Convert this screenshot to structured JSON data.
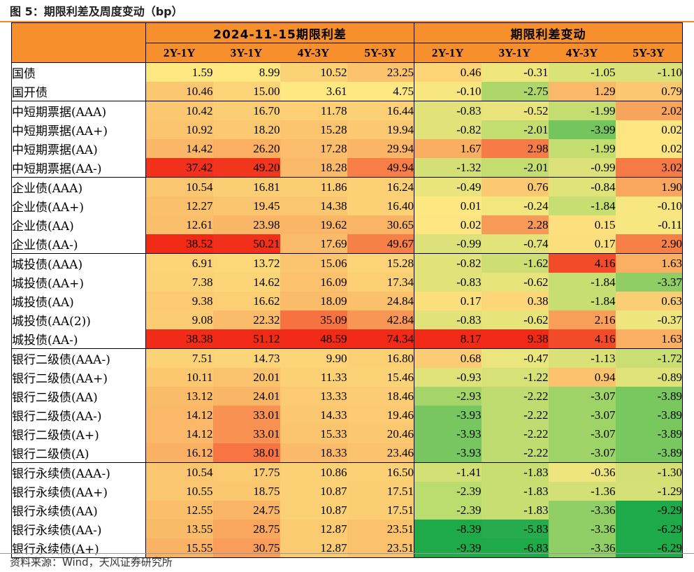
{
  "figure": {
    "title": "图 5：期限利差及周度变动（bp）",
    "source": "资料来源：Wind，天风证券研究所"
  },
  "header": {
    "group_levels": "2024-11-15期限利差",
    "group_changes": "期限利差变动",
    "columns": [
      "2Y-1Y",
      "3Y-1Y",
      "4Y-3Y",
      "5Y-3Y"
    ]
  },
  "groups": [
    {
      "rows": [
        {
          "label": "国债",
          "levels": [
            "1.59",
            "8.99",
            "10.52",
            "23.25"
          ],
          "changes": [
            "0.46",
            "-0.31",
            "-1.05",
            "-1.10"
          ]
        },
        {
          "label": "国开债",
          "levels": [
            "10.46",
            "15.00",
            "3.61",
            "4.75"
          ],
          "changes": [
            "-0.10",
            "-2.75",
            "1.29",
            "0.79"
          ]
        }
      ]
    },
    {
      "rows": [
        {
          "label": "中短期票据(AAA)",
          "levels": [
            "10.42",
            "16.70",
            "11.78",
            "16.44"
          ],
          "changes": [
            "-0.83",
            "-0.52",
            "-1.99",
            "2.02"
          ]
        },
        {
          "label": "中短期票据(AA+)",
          "levels": [
            "10.92",
            "18.20",
            "15.28",
            "19.94"
          ],
          "changes": [
            "-0.82",
            "-2.01",
            "-3.99",
            "0.02"
          ]
        },
        {
          "label": "中短期票据(AA)",
          "levels": [
            "14.42",
            "26.20",
            "17.28",
            "29.94"
          ],
          "changes": [
            "1.67",
            "2.98",
            "-1.99",
            "0.02"
          ]
        },
        {
          "label": "中短期票据(AA-)",
          "levels": [
            "37.42",
            "49.20",
            "18.28",
            "49.94"
          ],
          "changes": [
            "-1.32",
            "-2.01",
            "-0.99",
            "3.02"
          ]
        }
      ]
    },
    {
      "rows": [
        {
          "label": "企业债(AAA)",
          "levels": [
            "10.54",
            "16.81",
            "11.86",
            "16.24"
          ],
          "changes": [
            "-0.49",
            "0.76",
            "-0.84",
            "1.90"
          ]
        },
        {
          "label": "企业债(AA+)",
          "levels": [
            "12.27",
            "19.45",
            "14.38",
            "16.40"
          ],
          "changes": [
            "0.01",
            "-0.24",
            "-1.84",
            "-0.10"
          ]
        },
        {
          "label": "企业债(AA)",
          "levels": [
            "12.61",
            "23.98",
            "19.62",
            "30.65"
          ],
          "changes": [
            "0.02",
            "2.28",
            "0.15",
            "-0.11"
          ]
        },
        {
          "label": "企业债(AA-)",
          "levels": [
            "38.52",
            "50.21",
            "17.69",
            "49.67"
          ],
          "changes": [
            "-0.99",
            "-0.74",
            "0.17",
            "2.90"
          ]
        }
      ]
    },
    {
      "rows": [
        {
          "label": "城投债(AAA)",
          "levels": [
            "6.91",
            "13.72",
            "15.06",
            "15.28"
          ],
          "changes": [
            "-0.82",
            "-1.62",
            "4.16",
            "1.63"
          ]
        },
        {
          "label": "城投债(AA+)",
          "levels": [
            "7.38",
            "14.62",
            "16.09",
            "17.34"
          ],
          "changes": [
            "-0.83",
            "-0.62",
            "-1.84",
            "-3.37"
          ]
        },
        {
          "label": "城投债(AA)",
          "levels": [
            "9.38",
            "16.62",
            "18.09",
            "24.84"
          ],
          "changes": [
            "0.17",
            "0.38",
            "-1.84",
            "0.63"
          ]
        },
        {
          "label": "城投债(AA(2))",
          "levels": [
            "9.08",
            "22.32",
            "35.09",
            "42.84"
          ],
          "changes": [
            "-0.83",
            "-0.62",
            "2.16",
            "-0.37"
          ]
        },
        {
          "label": "城投债(AA-)",
          "levels": [
            "38.38",
            "51.12",
            "48.59",
            "74.34"
          ],
          "changes": [
            "8.17",
            "9.38",
            "4.16",
            "1.63"
          ]
        }
      ]
    },
    {
      "rows": [
        {
          "label": "银行二级债(AAA-)",
          "levels": [
            "7.51",
            "14.73",
            "9.90",
            "16.80"
          ],
          "changes": [
            "0.68",
            "-0.47",
            "-1.13",
            "-1.72"
          ]
        },
        {
          "label": "银行二级债(AA+)",
          "levels": [
            "10.11",
            "20.01",
            "11.33",
            "15.46"
          ],
          "changes": [
            "-0.93",
            "-1.22",
            "0.94",
            "-0.89"
          ]
        },
        {
          "label": "银行二级债(AA)",
          "levels": [
            "13.12",
            "24.01",
            "13.33",
            "18.46"
          ],
          "changes": [
            "-2.93",
            "-2.22",
            "-3.07",
            "-3.89"
          ]
        },
        {
          "label": "银行二级债(AA-)",
          "levels": [
            "14.12",
            "33.01",
            "14.33",
            "19.46"
          ],
          "changes": [
            "-3.93",
            "-2.22",
            "-3.07",
            "-3.89"
          ]
        },
        {
          "label": "银行二级债(A+)",
          "levels": [
            "14.12",
            "33.01",
            "15.33",
            "20.46"
          ],
          "changes": [
            "-3.93",
            "-2.22",
            "-3.07",
            "-3.89"
          ]
        },
        {
          "label": "银行二级债(A)",
          "levels": [
            "16.12",
            "38.01",
            "18.33",
            "23.46"
          ],
          "changes": [
            "-3.93",
            "-2.22",
            "-3.07",
            "-3.89"
          ]
        }
      ]
    },
    {
      "rows": [
        {
          "label": "银行永续债(AAA-)",
          "levels": [
            "10.54",
            "17.75",
            "10.86",
            "16.50"
          ],
          "changes": [
            "-1.41",
            "-1.83",
            "-0.36",
            "-1.30"
          ]
        },
        {
          "label": "银行永续债(AA+)",
          "levels": [
            "10.55",
            "18.75",
            "10.87",
            "17.51"
          ],
          "changes": [
            "-2.39",
            "-1.83",
            "-1.36",
            "-1.29"
          ]
        },
        {
          "label": "银行永续债(AA)",
          "levels": [
            "12.55",
            "24.75",
            "10.87",
            "17.51"
          ],
          "changes": [
            "-2.39",
            "-1.83",
            "-3.36",
            "-9.29"
          ]
        },
        {
          "label": "银行永续债(AA-)",
          "levels": [
            "13.55",
            "28.75",
            "12.87",
            "23.51"
          ],
          "changes": [
            "-8.39",
            "-5.83",
            "-3.36",
            "-6.29"
          ]
        },
        {
          "label": "银行永续债(A+)",
          "levels": [
            "15.55",
            "30.75",
            "12.87",
            "23.51"
          ],
          "changes": [
            "-9.39",
            "-6.83",
            "-3.36",
            "-6.29"
          ]
        }
      ]
    }
  ]
}
